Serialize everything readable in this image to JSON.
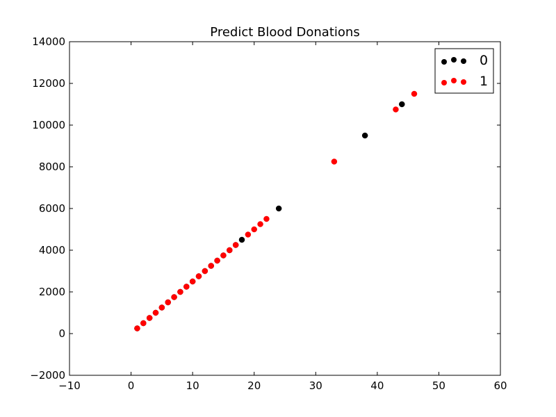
{
  "chart_data": {
    "type": "scatter",
    "title": "Predict Blood Donations",
    "xlabel": "",
    "ylabel": "",
    "xlim": [
      -10,
      60
    ],
    "ylim": [
      -2000,
      14000
    ],
    "x_ticks": [
      -10,
      0,
      10,
      20,
      30,
      40,
      50,
      60
    ],
    "y_ticks": [
      -2000,
      0,
      2000,
      4000,
      6000,
      8000,
      10000,
      12000,
      14000
    ],
    "x_tick_labels": [
      "−10",
      "0",
      "10",
      "20",
      "30",
      "40",
      "50",
      "60"
    ],
    "y_tick_labels": [
      "−2000",
      "0",
      "2000",
      "4000",
      "6000",
      "8000",
      "10000",
      "12000",
      "14000"
    ],
    "grid": false,
    "legend_position": "top-right",
    "series": [
      {
        "name": "0",
        "color": "#000000",
        "points": [
          [
            1,
            250
          ],
          [
            2,
            500
          ],
          [
            3,
            750
          ],
          [
            4,
            1000
          ],
          [
            5,
            1250
          ],
          [
            6,
            1500
          ],
          [
            7,
            1750
          ],
          [
            8,
            2000
          ],
          [
            9,
            2250
          ],
          [
            10,
            2500
          ],
          [
            11,
            2750
          ],
          [
            12,
            3000
          ],
          [
            13,
            3250
          ],
          [
            14,
            3500
          ],
          [
            15,
            3750
          ],
          [
            16,
            4000
          ],
          [
            17,
            4250
          ],
          [
            18,
            4500
          ],
          [
            24,
            6000
          ],
          [
            38,
            9500
          ],
          [
            44,
            11000
          ]
        ]
      },
      {
        "name": "1",
        "color": "#ff0000",
        "points": [
          [
            1,
            250
          ],
          [
            2,
            500
          ],
          [
            3,
            750
          ],
          [
            4,
            1000
          ],
          [
            5,
            1250
          ],
          [
            6,
            1500
          ],
          [
            7,
            1750
          ],
          [
            8,
            2000
          ],
          [
            9,
            2250
          ],
          [
            10,
            2500
          ],
          [
            11,
            2750
          ],
          [
            12,
            3000
          ],
          [
            13,
            3250
          ],
          [
            14,
            3500
          ],
          [
            15,
            3750
          ],
          [
            16,
            4000
          ],
          [
            17,
            4250
          ],
          [
            19,
            4750
          ],
          [
            20,
            5000
          ],
          [
            21,
            5250
          ],
          [
            22,
            5500
          ],
          [
            33,
            8250
          ],
          [
            43,
            10750
          ],
          [
            46,
            11500
          ]
        ]
      }
    ]
  }
}
